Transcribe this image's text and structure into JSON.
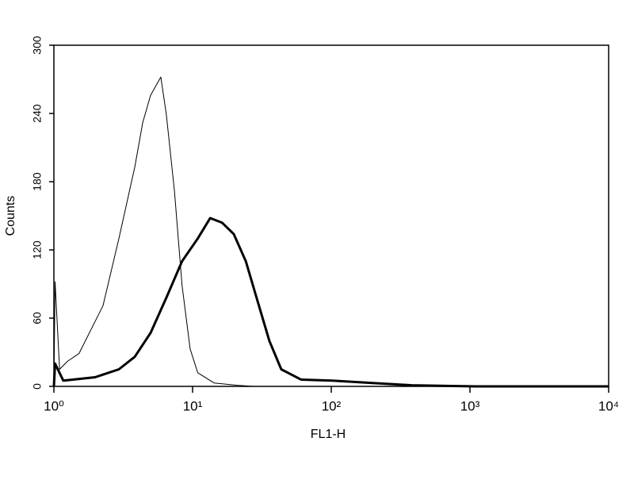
{
  "chart_data": {
    "type": "line",
    "x_label": "FL1-H",
    "y_label": "Counts",
    "xscale": "log",
    "xlim": [
      1,
      10000
    ],
    "xticks": [
      {
        "value": 1,
        "label": "10⁰"
      },
      {
        "value": 10,
        "label": "10¹"
      },
      {
        "value": 100,
        "label": "10²"
      },
      {
        "value": 1000,
        "label": "10³"
      },
      {
        "value": 10000,
        "label": "10⁴"
      }
    ],
    "ylim": [
      0,
      300
    ],
    "yticks": [
      0,
      60,
      120,
      180,
      240,
      300
    ],
    "series": [
      {
        "color": "#000000",
        "line_width": 1,
        "x": [
          1,
          1.02,
          1.1,
          1.25,
          1.52,
          2.26,
          2.94,
          3.83,
          4.37,
          4.98,
          5.9,
          6.47,
          7.4,
          8.4,
          9.6,
          10.9,
          14.3,
          21,
          27.5
        ],
        "values": [
          0,
          92,
          15,
          22,
          29,
          71,
          130,
          193,
          232,
          256,
          272,
          239,
          172,
          89,
          33,
          12,
          3,
          1,
          0
        ]
      },
      {
        "color": "#000000",
        "line_width": 3,
        "x": [
          1,
          1.02,
          1.17,
          1.98,
          2.94,
          3.83,
          4.98,
          6.47,
          8.4,
          10.9,
          13.4,
          16.3,
          19.8,
          24.2,
          29.4,
          35.8,
          43.6,
          60.6,
          102,
          198,
          380,
          1100,
          10000
        ],
        "values": [
          0,
          20,
          5,
          8,
          15,
          26,
          47,
          78,
          110,
          130,
          148,
          144,
          134,
          110,
          75,
          40,
          15,
          6,
          5,
          3,
          1,
          0,
          0
        ]
      }
    ]
  }
}
